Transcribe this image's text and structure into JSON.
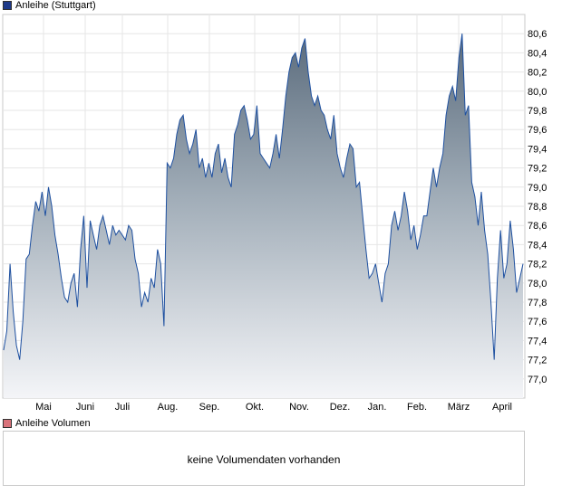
{
  "legend": {
    "price_label": "Anleihe (Stuttgart)",
    "price_color": "#1e3a8a",
    "volume_label": "Anleihe Volumen",
    "volume_color": "#d9737b"
  },
  "volume": {
    "message": "keine Volumendaten vorhanden"
  },
  "chart_data": {
    "type": "area",
    "series_name": "Anleihe (Stuttgart)",
    "y_ticks": [
      "77,0",
      "77,2",
      "77,4",
      "77,6",
      "77,8",
      "78,0",
      "78,2",
      "78,4",
      "78,6",
      "78,8",
      "79,0",
      "79,2",
      "79,4",
      "79,6",
      "79,8",
      "80,0",
      "80,2",
      "80,4",
      "80,6"
    ],
    "ylim": [
      76.8,
      80.8
    ],
    "x_ticks": [
      "Mai",
      "Juni",
      "Juli",
      "Aug.",
      "Sep.",
      "Okt.",
      "Nov.",
      "Dez.",
      "Jan.",
      "Feb.",
      "März",
      "April"
    ],
    "grid": true,
    "values": [
      77.3,
      77.5,
      78.2,
      77.7,
      77.35,
      77.2,
      77.6,
      78.25,
      78.3,
      78.6,
      78.85,
      78.75,
      78.95,
      78.7,
      79.0,
      78.8,
      78.5,
      78.3,
      78.05,
      77.85,
      77.8,
      78.0,
      78.1,
      77.75,
      78.35,
      78.7,
      77.95,
      78.65,
      78.5,
      78.35,
      78.6,
      78.7,
      78.55,
      78.4,
      78.6,
      78.5,
      78.55,
      78.5,
      78.45,
      78.6,
      78.55,
      78.25,
      78.1,
      77.75,
      77.9,
      77.8,
      78.05,
      77.95,
      78.35,
      78.2,
      77.55,
      79.25,
      79.2,
      79.3,
      79.55,
      79.7,
      79.75,
      79.5,
      79.35,
      79.45,
      79.6,
      79.2,
      79.3,
      79.1,
      79.25,
      79.1,
      79.35,
      79.45,
      79.15,
      79.3,
      79.1,
      79.0,
      79.55,
      79.65,
      79.8,
      79.85,
      79.7,
      79.5,
      79.55,
      79.85,
      79.35,
      79.3,
      79.25,
      79.2,
      79.35,
      79.55,
      79.3,
      79.6,
      79.95,
      80.2,
      80.35,
      80.4,
      80.25,
      80.45,
      80.55,
      80.2,
      79.95,
      79.85,
      79.95,
      79.8,
      79.75,
      79.6,
      79.5,
      79.75,
      79.35,
      79.2,
      79.1,
      79.3,
      79.45,
      79.4,
      79.0,
      79.05,
      78.7,
      78.35,
      78.05,
      78.1,
      78.2,
      78.0,
      77.8,
      78.1,
      78.2,
      78.6,
      78.75,
      78.55,
      78.7,
      78.95,
      78.75,
      78.45,
      78.6,
      78.35,
      78.5,
      78.7,
      78.7,
      78.95,
      79.2,
      79.0,
      79.2,
      79.35,
      79.75,
      79.95,
      80.05,
      79.9,
      80.35,
      80.6,
      79.75,
      79.85,
      79.05,
      78.9,
      78.6,
      78.95,
      78.55,
      78.3,
      77.8,
      77.2,
      78.05,
      78.55,
      78.05,
      78.2,
      78.65,
      78.35,
      77.9,
      78.05,
      78.2
    ],
    "x_label": "",
    "y_label": ""
  }
}
